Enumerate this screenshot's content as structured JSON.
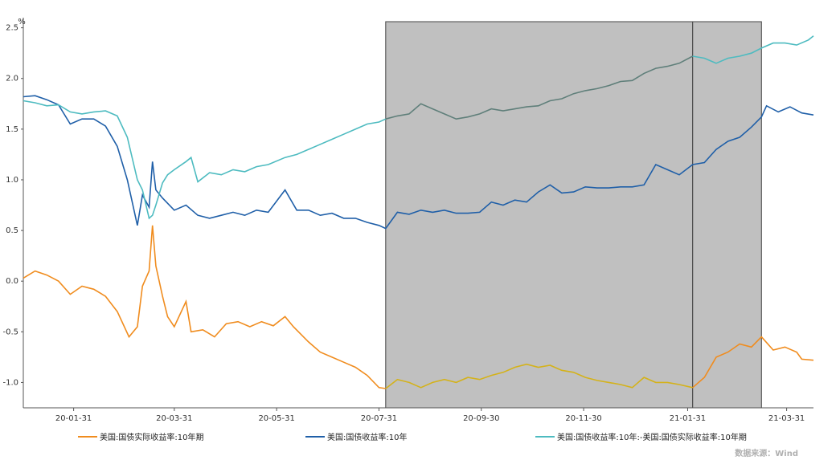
{
  "chart_data": {
    "type": "line",
    "unit": "%",
    "x_ticks": [
      "20-01-31",
      "20-03-31",
      "20-05-31",
      "20-07-31",
      "20-09-30",
      "20-11-30",
      "21-01-31",
      "21-03-31"
    ],
    "x_range": [
      "2020-01-01",
      "2021-04-16"
    ],
    "ylim": [
      -1.25,
      2.6
    ],
    "y_ticks": [
      "2.5",
      "2.0",
      "1.5",
      "1.0",
      "0.5",
      "0.0",
      "-0.5",
      "-1.0"
    ],
    "y_tick_values": [
      2.5,
      2.0,
      1.5,
      1.0,
      0.5,
      0.0,
      -0.5,
      -1.0
    ],
    "shaded_regions": [
      {
        "start": "2020-08-04",
        "end": "2021-02-03",
        "color": "#c0c0c0"
      },
      {
        "start": "2021-02-03",
        "end": "2021-03-16",
        "color": "#c0c0c0"
      }
    ],
    "series": [
      {
        "name": "美国:国债实际收益率:10年期",
        "color": "#f08c1e",
        "highlight_color": "#d4b21a",
        "points": [
          [
            "2020-01-01",
            0.03
          ],
          [
            "2020-01-08",
            0.1
          ],
          [
            "2020-01-15",
            0.06
          ],
          [
            "2020-01-22",
            0.0
          ],
          [
            "2020-01-29",
            -0.13
          ],
          [
            "2020-02-05",
            -0.05
          ],
          [
            "2020-02-12",
            -0.08
          ],
          [
            "2020-02-19",
            -0.15
          ],
          [
            "2020-02-26",
            -0.3
          ],
          [
            "2020-03-04",
            -0.55
          ],
          [
            "2020-03-09",
            -0.45
          ],
          [
            "2020-03-12",
            -0.05
          ],
          [
            "2020-03-16",
            0.1
          ],
          [
            "2020-03-18",
            0.55
          ],
          [
            "2020-03-20",
            0.15
          ],
          [
            "2020-03-24",
            -0.15
          ],
          [
            "2020-03-27",
            -0.35
          ],
          [
            "2020-03-31",
            -0.45
          ],
          [
            "2020-04-07",
            -0.2
          ],
          [
            "2020-04-10",
            -0.5
          ],
          [
            "2020-04-17",
            -0.48
          ],
          [
            "2020-04-24",
            -0.55
          ],
          [
            "2020-05-01",
            -0.42
          ],
          [
            "2020-05-08",
            -0.4
          ],
          [
            "2020-05-15",
            -0.45
          ],
          [
            "2020-05-22",
            -0.4
          ],
          [
            "2020-05-29",
            -0.44
          ],
          [
            "2020-06-05",
            -0.35
          ],
          [
            "2020-06-10",
            -0.45
          ],
          [
            "2020-06-19",
            -0.6
          ],
          [
            "2020-06-26",
            -0.7
          ],
          [
            "2020-07-03",
            -0.75
          ],
          [
            "2020-07-10",
            -0.8
          ],
          [
            "2020-07-17",
            -0.85
          ],
          [
            "2020-07-24",
            -0.93
          ],
          [
            "2020-07-31",
            -1.05
          ],
          [
            "2020-08-04",
            -1.06
          ],
          [
            "2020-08-11",
            -0.97
          ],
          [
            "2020-08-18",
            -1.0
          ],
          [
            "2020-08-25",
            -1.05
          ],
          [
            "2020-09-01",
            -1.0
          ],
          [
            "2020-09-08",
            -0.97
          ],
          [
            "2020-09-15",
            -1.0
          ],
          [
            "2020-09-22",
            -0.95
          ],
          [
            "2020-09-29",
            -0.97
          ],
          [
            "2020-10-06",
            -0.93
          ],
          [
            "2020-10-13",
            -0.9
          ],
          [
            "2020-10-20",
            -0.85
          ],
          [
            "2020-10-27",
            -0.82
          ],
          [
            "2020-11-03",
            -0.85
          ],
          [
            "2020-11-10",
            -0.83
          ],
          [
            "2020-11-17",
            -0.88
          ],
          [
            "2020-11-24",
            -0.9
          ],
          [
            "2020-12-01",
            -0.95
          ],
          [
            "2020-12-08",
            -0.98
          ],
          [
            "2020-12-15",
            -1.0
          ],
          [
            "2020-12-22",
            -1.02
          ],
          [
            "2020-12-29",
            -1.05
          ],
          [
            "2021-01-05",
            -0.95
          ],
          [
            "2021-01-12",
            -1.0
          ],
          [
            "2021-01-19",
            -1.0
          ],
          [
            "2021-01-26",
            -1.02
          ],
          [
            "2021-02-03",
            -1.05
          ],
          [
            "2021-02-10",
            -0.95
          ],
          [
            "2021-02-17",
            -0.75
          ],
          [
            "2021-02-24",
            -0.7
          ],
          [
            "2021-03-03",
            -0.62
          ],
          [
            "2021-03-10",
            -0.65
          ],
          [
            "2021-03-16",
            -0.55
          ],
          [
            "2021-03-23",
            -0.68
          ],
          [
            "2021-03-30",
            -0.65
          ],
          [
            "2021-04-06",
            -0.7
          ],
          [
            "2021-04-09",
            -0.77
          ],
          [
            "2021-04-16",
            -0.78
          ]
        ]
      },
      {
        "name": "美国:国债收益率:10年",
        "color": "#1f5fa8",
        "points": [
          [
            "2020-01-01",
            1.82
          ],
          [
            "2020-01-08",
            1.83
          ],
          [
            "2020-01-15",
            1.79
          ],
          [
            "2020-01-22",
            1.74
          ],
          [
            "2020-01-29",
            1.55
          ],
          [
            "2020-02-05",
            1.6
          ],
          [
            "2020-02-12",
            1.6
          ],
          [
            "2020-02-19",
            1.53
          ],
          [
            "2020-02-26",
            1.33
          ],
          [
            "2020-03-03",
            1.0
          ],
          [
            "2020-03-09",
            0.55
          ],
          [
            "2020-03-12",
            0.85
          ],
          [
            "2020-03-16",
            0.73
          ],
          [
            "2020-03-18",
            1.18
          ],
          [
            "2020-03-20",
            0.9
          ],
          [
            "2020-03-24",
            0.82
          ],
          [
            "2020-03-31",
            0.7
          ],
          [
            "2020-04-07",
            0.75
          ],
          [
            "2020-04-14",
            0.65
          ],
          [
            "2020-04-21",
            0.62
          ],
          [
            "2020-04-28",
            0.65
          ],
          [
            "2020-05-05",
            0.68
          ],
          [
            "2020-05-12",
            0.65
          ],
          [
            "2020-05-19",
            0.7
          ],
          [
            "2020-05-26",
            0.68
          ],
          [
            "2020-06-05",
            0.9
          ],
          [
            "2020-06-12",
            0.7
          ],
          [
            "2020-06-19",
            0.7
          ],
          [
            "2020-06-26",
            0.65
          ],
          [
            "2020-07-03",
            0.67
          ],
          [
            "2020-07-10",
            0.62
          ],
          [
            "2020-07-17",
            0.62
          ],
          [
            "2020-07-24",
            0.58
          ],
          [
            "2020-07-31",
            0.55
          ],
          [
            "2020-08-04",
            0.52
          ],
          [
            "2020-08-11",
            0.68
          ],
          [
            "2020-08-18",
            0.66
          ],
          [
            "2020-08-25",
            0.7
          ],
          [
            "2020-09-01",
            0.68
          ],
          [
            "2020-09-08",
            0.7
          ],
          [
            "2020-09-15",
            0.67
          ],
          [
            "2020-09-22",
            0.67
          ],
          [
            "2020-09-29",
            0.68
          ],
          [
            "2020-10-06",
            0.78
          ],
          [
            "2020-10-13",
            0.75
          ],
          [
            "2020-10-20",
            0.8
          ],
          [
            "2020-10-27",
            0.78
          ],
          [
            "2020-11-03",
            0.88
          ],
          [
            "2020-11-10",
            0.95
          ],
          [
            "2020-11-17",
            0.87
          ],
          [
            "2020-11-24",
            0.88
          ],
          [
            "2020-12-01",
            0.93
          ],
          [
            "2020-12-08",
            0.92
          ],
          [
            "2020-12-15",
            0.92
          ],
          [
            "2020-12-22",
            0.93
          ],
          [
            "2020-12-29",
            0.93
          ],
          [
            "2021-01-05",
            0.95
          ],
          [
            "2021-01-12",
            1.15
          ],
          [
            "2021-01-19",
            1.1
          ],
          [
            "2021-01-26",
            1.05
          ],
          [
            "2021-02-03",
            1.15
          ],
          [
            "2021-02-10",
            1.17
          ],
          [
            "2021-02-17",
            1.3
          ],
          [
            "2021-02-24",
            1.38
          ],
          [
            "2021-03-03",
            1.42
          ],
          [
            "2021-03-10",
            1.52
          ],
          [
            "2021-03-16",
            1.62
          ],
          [
            "2021-03-19",
            1.73
          ],
          [
            "2021-03-26",
            1.67
          ],
          [
            "2021-04-02",
            1.72
          ],
          [
            "2021-04-09",
            1.66
          ],
          [
            "2021-04-16",
            1.64
          ]
        ]
      },
      {
        "name": "美国:国债收益率:10年:-美国:国债实际收益率:10年期",
        "color": "#4dbbc0",
        "highlight_color": "#5f7f7a",
        "points": [
          [
            "2020-01-01",
            1.78
          ],
          [
            "2020-01-08",
            1.76
          ],
          [
            "2020-01-15",
            1.73
          ],
          [
            "2020-01-22",
            1.74
          ],
          [
            "2020-01-29",
            1.67
          ],
          [
            "2020-02-05",
            1.65
          ],
          [
            "2020-02-12",
            1.67
          ],
          [
            "2020-02-19",
            1.68
          ],
          [
            "2020-02-26",
            1.63
          ],
          [
            "2020-03-03",
            1.42
          ],
          [
            "2020-03-09",
            1.0
          ],
          [
            "2020-03-12",
            0.9
          ],
          [
            "2020-03-16",
            0.62
          ],
          [
            "2020-03-18",
            0.65
          ],
          [
            "2020-03-20",
            0.75
          ],
          [
            "2020-03-24",
            0.97
          ],
          [
            "2020-03-27",
            1.05
          ],
          [
            "2020-03-31",
            1.1
          ],
          [
            "2020-04-07",
            1.18
          ],
          [
            "2020-04-10",
            1.22
          ],
          [
            "2020-04-14",
            0.98
          ],
          [
            "2020-04-21",
            1.07
          ],
          [
            "2020-04-28",
            1.05
          ],
          [
            "2020-05-05",
            1.1
          ],
          [
            "2020-05-12",
            1.08
          ],
          [
            "2020-05-19",
            1.13
          ],
          [
            "2020-05-26",
            1.15
          ],
          [
            "2020-06-05",
            1.22
          ],
          [
            "2020-06-12",
            1.25
          ],
          [
            "2020-06-19",
            1.3
          ],
          [
            "2020-06-26",
            1.35
          ],
          [
            "2020-07-03",
            1.4
          ],
          [
            "2020-07-10",
            1.45
          ],
          [
            "2020-07-17",
            1.5
          ],
          [
            "2020-07-24",
            1.55
          ],
          [
            "2020-07-31",
            1.57
          ],
          [
            "2020-08-04",
            1.6
          ],
          [
            "2020-08-11",
            1.63
          ],
          [
            "2020-08-18",
            1.65
          ],
          [
            "2020-08-25",
            1.75
          ],
          [
            "2020-09-01",
            1.7
          ],
          [
            "2020-09-08",
            1.65
          ],
          [
            "2020-09-15",
            1.6
          ],
          [
            "2020-09-22",
            1.62
          ],
          [
            "2020-09-29",
            1.65
          ],
          [
            "2020-10-06",
            1.7
          ],
          [
            "2020-10-13",
            1.68
          ],
          [
            "2020-10-20",
            1.7
          ],
          [
            "2020-10-27",
            1.72
          ],
          [
            "2020-11-03",
            1.73
          ],
          [
            "2020-11-10",
            1.78
          ],
          [
            "2020-11-17",
            1.8
          ],
          [
            "2020-11-24",
            1.85
          ],
          [
            "2020-12-01",
            1.88
          ],
          [
            "2020-12-08",
            1.9
          ],
          [
            "2020-12-15",
            1.93
          ],
          [
            "2020-12-22",
            1.97
          ],
          [
            "2020-12-29",
            1.98
          ],
          [
            "2021-01-05",
            2.05
          ],
          [
            "2021-01-12",
            2.1
          ],
          [
            "2021-01-19",
            2.12
          ],
          [
            "2021-01-26",
            2.15
          ],
          [
            "2021-02-03",
            2.22
          ],
          [
            "2021-02-10",
            2.2
          ],
          [
            "2021-02-17",
            2.15
          ],
          [
            "2021-02-24",
            2.2
          ],
          [
            "2021-03-03",
            2.22
          ],
          [
            "2021-03-10",
            2.25
          ],
          [
            "2021-03-16",
            2.3
          ],
          [
            "2021-03-23",
            2.35
          ],
          [
            "2021-03-30",
            2.35
          ],
          [
            "2021-04-06",
            2.33
          ],
          [
            "2021-04-13",
            2.38
          ],
          [
            "2021-04-16",
            2.42
          ]
        ]
      }
    ]
  },
  "legend": [
    {
      "label": "美国:国债实际收益率:10年期",
      "color": "#f08c1e"
    },
    {
      "label": "美国:国债收益率:10年",
      "color": "#1f5fa8"
    },
    {
      "label": "美国:国债收益率:10年:-美国:国债实际收益率:10年期",
      "color": "#4dbbc0"
    }
  ],
  "source_label": "数据来源：Wind"
}
